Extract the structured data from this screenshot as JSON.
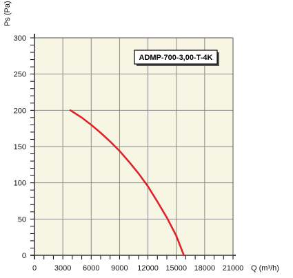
{
  "chart_data": {
    "type": "line",
    "title": "",
    "xlabel": "Q (m³/h)",
    "ylabel": "Ps (Pa)",
    "xlim": [
      0,
      21000
    ],
    "ylim": [
      0,
      300
    ],
    "x_ticks": [
      "0",
      "3000",
      "6000",
      "9000",
      "12000",
      "15000",
      "18000",
      "21000"
    ],
    "y_ticks": [
      "0",
      "50",
      "100",
      "150",
      "200",
      "250",
      "300"
    ],
    "grid": true,
    "annotation": "ADMP-700-3,00-T-4K",
    "colors": {
      "plot_bg": "#f7f5e3",
      "grid": "#8a8a8a",
      "curve": "#e0232a"
    },
    "series": [
      {
        "x": [
          3800,
          5000,
          6000,
          7000,
          8000,
          9000,
          10000,
          11000,
          12000,
          13000,
          14000,
          15000,
          15800
        ],
        "y": [
          200,
          190,
          180,
          169,
          157,
          144,
          129,
          113,
          95,
          74,
          52,
          27,
          0
        ]
      }
    ]
  }
}
